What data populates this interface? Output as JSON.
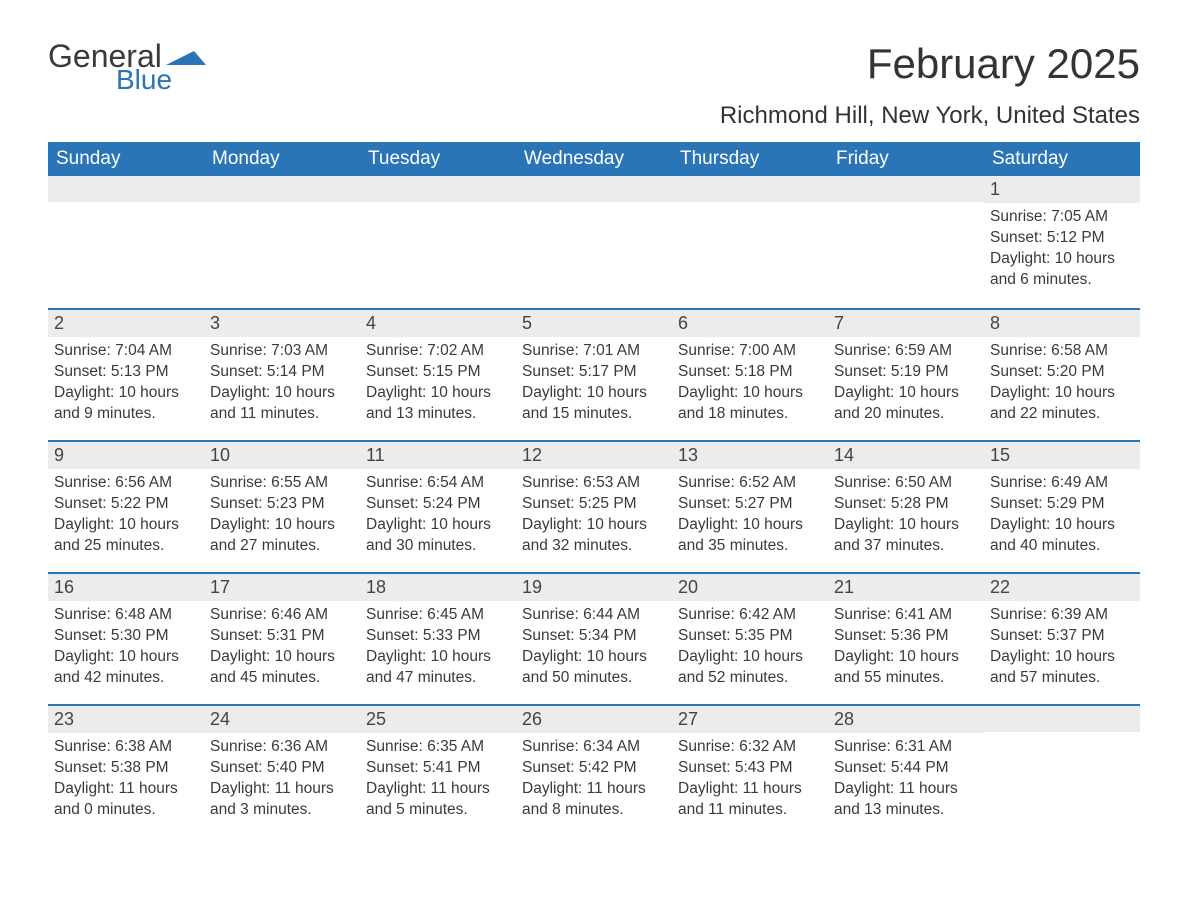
{
  "logo": {
    "word1": "General",
    "word2": "Blue",
    "flag_color": "#2a74b8",
    "word1_color": "#3a3a3a",
    "word2_color": "#2a74b8"
  },
  "title": "February 2025",
  "location": "Richmond Hill, New York, United States",
  "colors": {
    "header_bg": "#2a74b8",
    "header_text": "#ffffff",
    "daynum_bg": "#ececec",
    "body_text": "#3a3a3a",
    "rule": "#2a74b8",
    "page_bg": "#ffffff"
  },
  "weekdays": [
    "Sunday",
    "Monday",
    "Tuesday",
    "Wednesday",
    "Thursday",
    "Friday",
    "Saturday"
  ],
  "weeks": [
    [
      {
        "day": null
      },
      {
        "day": null
      },
      {
        "day": null
      },
      {
        "day": null
      },
      {
        "day": null
      },
      {
        "day": null
      },
      {
        "day": "1",
        "sunrise": "Sunrise: 7:05 AM",
        "sunset": "Sunset: 5:12 PM",
        "daylight": "Daylight: 10 hours and 6 minutes."
      }
    ],
    [
      {
        "day": "2",
        "sunrise": "Sunrise: 7:04 AM",
        "sunset": "Sunset: 5:13 PM",
        "daylight": "Daylight: 10 hours and 9 minutes."
      },
      {
        "day": "3",
        "sunrise": "Sunrise: 7:03 AM",
        "sunset": "Sunset: 5:14 PM",
        "daylight": "Daylight: 10 hours and 11 minutes."
      },
      {
        "day": "4",
        "sunrise": "Sunrise: 7:02 AM",
        "sunset": "Sunset: 5:15 PM",
        "daylight": "Daylight: 10 hours and 13 minutes."
      },
      {
        "day": "5",
        "sunrise": "Sunrise: 7:01 AM",
        "sunset": "Sunset: 5:17 PM",
        "daylight": "Daylight: 10 hours and 15 minutes."
      },
      {
        "day": "6",
        "sunrise": "Sunrise: 7:00 AM",
        "sunset": "Sunset: 5:18 PM",
        "daylight": "Daylight: 10 hours and 18 minutes."
      },
      {
        "day": "7",
        "sunrise": "Sunrise: 6:59 AM",
        "sunset": "Sunset: 5:19 PM",
        "daylight": "Daylight: 10 hours and 20 minutes."
      },
      {
        "day": "8",
        "sunrise": "Sunrise: 6:58 AM",
        "sunset": "Sunset: 5:20 PM",
        "daylight": "Daylight: 10 hours and 22 minutes."
      }
    ],
    [
      {
        "day": "9",
        "sunrise": "Sunrise: 6:56 AM",
        "sunset": "Sunset: 5:22 PM",
        "daylight": "Daylight: 10 hours and 25 minutes."
      },
      {
        "day": "10",
        "sunrise": "Sunrise: 6:55 AM",
        "sunset": "Sunset: 5:23 PM",
        "daylight": "Daylight: 10 hours and 27 minutes."
      },
      {
        "day": "11",
        "sunrise": "Sunrise: 6:54 AM",
        "sunset": "Sunset: 5:24 PM",
        "daylight": "Daylight: 10 hours and 30 minutes."
      },
      {
        "day": "12",
        "sunrise": "Sunrise: 6:53 AM",
        "sunset": "Sunset: 5:25 PM",
        "daylight": "Daylight: 10 hours and 32 minutes."
      },
      {
        "day": "13",
        "sunrise": "Sunrise: 6:52 AM",
        "sunset": "Sunset: 5:27 PM",
        "daylight": "Daylight: 10 hours and 35 minutes."
      },
      {
        "day": "14",
        "sunrise": "Sunrise: 6:50 AM",
        "sunset": "Sunset: 5:28 PM",
        "daylight": "Daylight: 10 hours and 37 minutes."
      },
      {
        "day": "15",
        "sunrise": "Sunrise: 6:49 AM",
        "sunset": "Sunset: 5:29 PM",
        "daylight": "Daylight: 10 hours and 40 minutes."
      }
    ],
    [
      {
        "day": "16",
        "sunrise": "Sunrise: 6:48 AM",
        "sunset": "Sunset: 5:30 PM",
        "daylight": "Daylight: 10 hours and 42 minutes."
      },
      {
        "day": "17",
        "sunrise": "Sunrise: 6:46 AM",
        "sunset": "Sunset: 5:31 PM",
        "daylight": "Daylight: 10 hours and 45 minutes."
      },
      {
        "day": "18",
        "sunrise": "Sunrise: 6:45 AM",
        "sunset": "Sunset: 5:33 PM",
        "daylight": "Daylight: 10 hours and 47 minutes."
      },
      {
        "day": "19",
        "sunrise": "Sunrise: 6:44 AM",
        "sunset": "Sunset: 5:34 PM",
        "daylight": "Daylight: 10 hours and 50 minutes."
      },
      {
        "day": "20",
        "sunrise": "Sunrise: 6:42 AM",
        "sunset": "Sunset: 5:35 PM",
        "daylight": "Daylight: 10 hours and 52 minutes."
      },
      {
        "day": "21",
        "sunrise": "Sunrise: 6:41 AM",
        "sunset": "Sunset: 5:36 PM",
        "daylight": "Daylight: 10 hours and 55 minutes."
      },
      {
        "day": "22",
        "sunrise": "Sunrise: 6:39 AM",
        "sunset": "Sunset: 5:37 PM",
        "daylight": "Daylight: 10 hours and 57 minutes."
      }
    ],
    [
      {
        "day": "23",
        "sunrise": "Sunrise: 6:38 AM",
        "sunset": "Sunset: 5:38 PM",
        "daylight": "Daylight: 11 hours and 0 minutes."
      },
      {
        "day": "24",
        "sunrise": "Sunrise: 6:36 AM",
        "sunset": "Sunset: 5:40 PM",
        "daylight": "Daylight: 11 hours and 3 minutes."
      },
      {
        "day": "25",
        "sunrise": "Sunrise: 6:35 AM",
        "sunset": "Sunset: 5:41 PM",
        "daylight": "Daylight: 11 hours and 5 minutes."
      },
      {
        "day": "26",
        "sunrise": "Sunrise: 6:34 AM",
        "sunset": "Sunset: 5:42 PM",
        "daylight": "Daylight: 11 hours and 8 minutes."
      },
      {
        "day": "27",
        "sunrise": "Sunrise: 6:32 AM",
        "sunset": "Sunset: 5:43 PM",
        "daylight": "Daylight: 11 hours and 11 minutes."
      },
      {
        "day": "28",
        "sunrise": "Sunrise: 6:31 AM",
        "sunset": "Sunset: 5:44 PM",
        "daylight": "Daylight: 11 hours and 13 minutes."
      },
      {
        "day": null
      }
    ]
  ]
}
